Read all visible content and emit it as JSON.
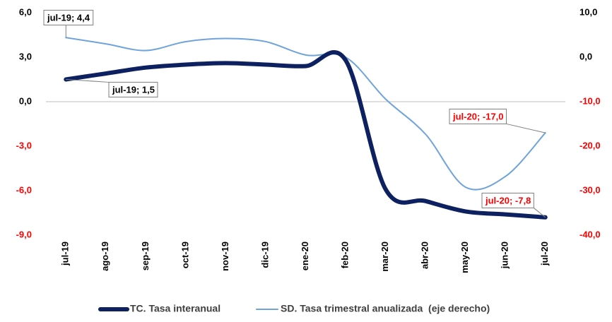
{
  "chart_data": {
    "type": "line",
    "categories": [
      "jul-19",
      "ago-19",
      "sep-19",
      "oct-19",
      "nov-19",
      "dic-19",
      "ene-20",
      "feb-20",
      "mar-20",
      "abr-20",
      "may-20",
      "jun-20",
      "jul-20"
    ],
    "series": [
      {
        "name": "TC. Tasa interanual",
        "color": "#0d2160",
        "axis": "y",
        "values": [
          1.5,
          1.9,
          2.3,
          2.5,
          2.6,
          2.5,
          2.4,
          2.8,
          -5.9,
          -6.7,
          -7.4,
          -7.6,
          -7.8
        ],
        "value_labels": [
          "jul-19; 1,5",
          null,
          null,
          null,
          null,
          null,
          null,
          null,
          null,
          null,
          null,
          null,
          "jul-20; -7,8"
        ]
      },
      {
        "name": "SD. Tasa trimestral anualizada  (eje derecho)",
        "color": "#6fa3dc",
        "axis": "y2",
        "values": [
          4.4,
          3.0,
          1.5,
          3.5,
          4.2,
          3.5,
          0.5,
          0.0,
          -9.4,
          -17.3,
          -29.2,
          -26.8,
          -17.0
        ],
        "value_labels": [
          "jul-19; 4,4",
          null,
          null,
          null,
          null,
          null,
          null,
          null,
          null,
          null,
          null,
          null,
          "jul-20; -17,0"
        ]
      }
    ],
    "ylim": [
      -9,
      6
    ],
    "yticks": [
      {
        "value": -9,
        "label": "-9,0"
      },
      {
        "value": -6,
        "label": "-6,0"
      },
      {
        "value": -3,
        "label": "-3,0"
      },
      {
        "value": 0,
        "label": "0,0"
      },
      {
        "value": 3,
        "label": "3,0"
      },
      {
        "value": 6,
        "label": "6,0"
      }
    ],
    "y2lim": [
      -40,
      10
    ],
    "y2ticks": [
      {
        "value": -40,
        "label": "-40,0"
      },
      {
        "value": -30,
        "label": "-30,0"
      },
      {
        "value": -20,
        "label": "-20,0"
      },
      {
        "value": -10,
        "label": "-10,0"
      },
      {
        "value": 0,
        "label": "0,0"
      },
      {
        "value": 10,
        "label": "10,0"
      }
    ],
    "negative_color": "#ff0000",
    "legend": "bottom"
  }
}
